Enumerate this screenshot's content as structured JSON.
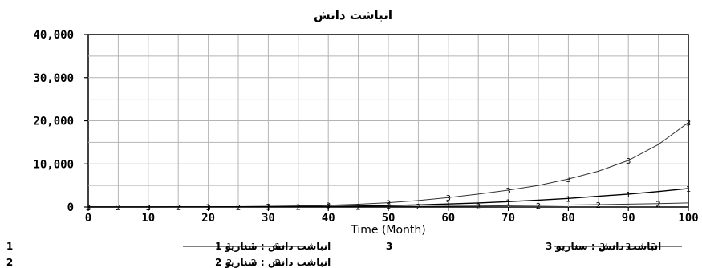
{
  "chart_data": {
    "type": "line",
    "title": "انباشت دانش",
    "xlabel": "Time (Month)",
    "ylabel": "",
    "xlim": [
      0,
      100
    ],
    "ylim": [
      0,
      40000
    ],
    "x_ticks": [
      "0",
      "10",
      "20",
      "30",
      "40",
      "50",
      "60",
      "70",
      "80",
      "90",
      "100"
    ],
    "y_ticks": [
      "40,000",
      "30,000",
      "20,000",
      "10,000",
      "0"
    ],
    "grid": true,
    "legend_position": "bottom",
    "x": [
      0,
      5,
      10,
      15,
      20,
      25,
      30,
      35,
      40,
      45,
      50,
      55,
      60,
      65,
      70,
      75,
      80,
      85,
      90,
      95,
      100
    ],
    "series": [
      {
        "name": "انباشت دانش : سناریو 1",
        "marker": "1",
        "color": "#000000",
        "values": [
          10,
          15,
          20,
          30,
          40,
          55,
          80,
          110,
          150,
          220,
          330,
          500,
          700,
          950,
          1250,
          1600,
          2000,
          2500,
          3000,
          3600,
          4300
        ]
      },
      {
        "name": "انباشت دانش : سناریو 2",
        "marker": "2",
        "color": "#000000",
        "values": [
          10,
          12,
          15,
          20,
          25,
          30,
          40,
          55,
          70,
          90,
          120,
          150,
          190,
          240,
          300,
          380,
          460,
          560,
          670,
          800,
          950
        ]
      },
      {
        "name": "انباشت دانش : سناریو 3",
        "marker": "3",
        "color": "#000000",
        "values": [
          10,
          15,
          25,
          40,
          60,
          100,
          160,
          260,
          420,
          650,
          1000,
          1500,
          2200,
          3000,
          3900,
          5000,
          6500,
          8300,
          10800,
          14500,
          19600
        ]
      }
    ]
  }
}
